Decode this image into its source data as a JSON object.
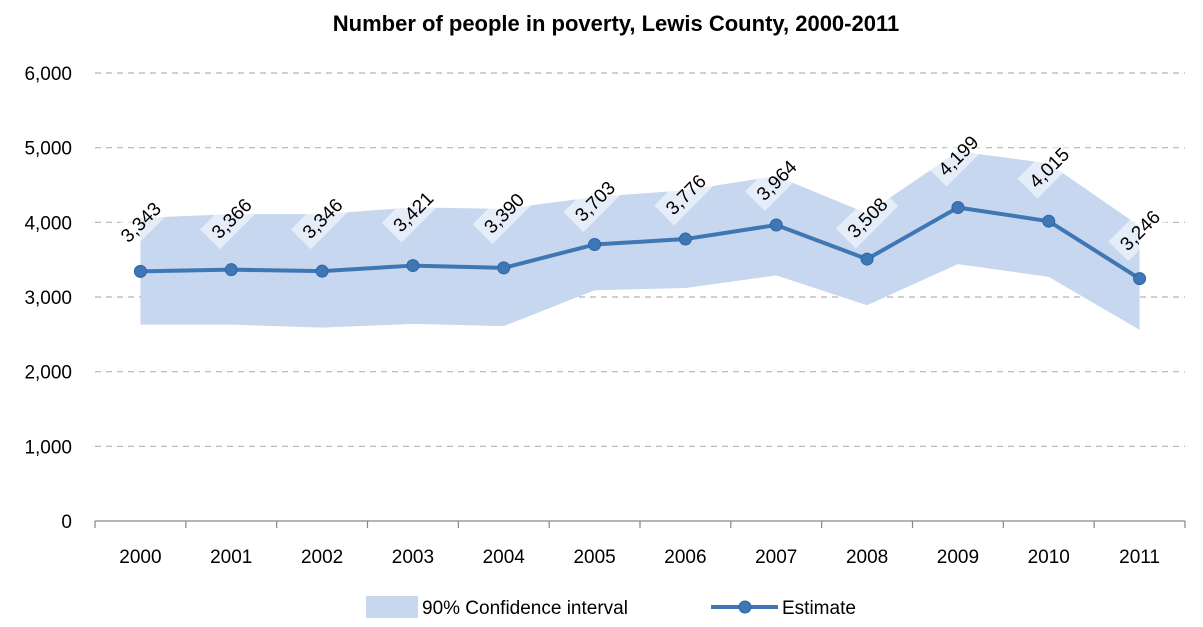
{
  "chart_data": {
    "type": "line",
    "title": "Number of people in poverty, Lewis County, 2000-2011",
    "categories": [
      "2000",
      "2001",
      "2002",
      "2003",
      "2004",
      "2005",
      "2006",
      "2007",
      "2008",
      "2009",
      "2010",
      "2011"
    ],
    "series": [
      {
        "name": "Estimate",
        "values": [
          3343,
          3366,
          3346,
          3421,
          3390,
          3703,
          3776,
          3964,
          3508,
          4199,
          4015,
          3246
        ],
        "labels": [
          "3,343",
          "3,366",
          "3,346",
          "3,421",
          "3,390",
          "3,703",
          "3,776",
          "3,964",
          "3,508",
          "4,199",
          "4,015",
          "3,246"
        ],
        "color": "#3f77b5"
      }
    ],
    "confidence_interval": {
      "name": "90% Confidence interval",
      "lower": [
        2630,
        2630,
        2590,
        2640,
        2610,
        3090,
        3120,
        3290,
        2890,
        3440,
        3270,
        2560
      ],
      "upper": [
        4060,
        4110,
        4110,
        4200,
        4180,
        4340,
        4430,
        4620,
        4120,
        4950,
        4790,
        3950
      ],
      "color": "#c6d7ef"
    },
    "y_ticks": [
      "0",
      "1,000",
      "2,000",
      "3,000",
      "4,000",
      "5,000",
      "6,000"
    ],
    "ylim": [
      0,
      6000
    ],
    "grid": true,
    "legend_position": "bottom"
  }
}
